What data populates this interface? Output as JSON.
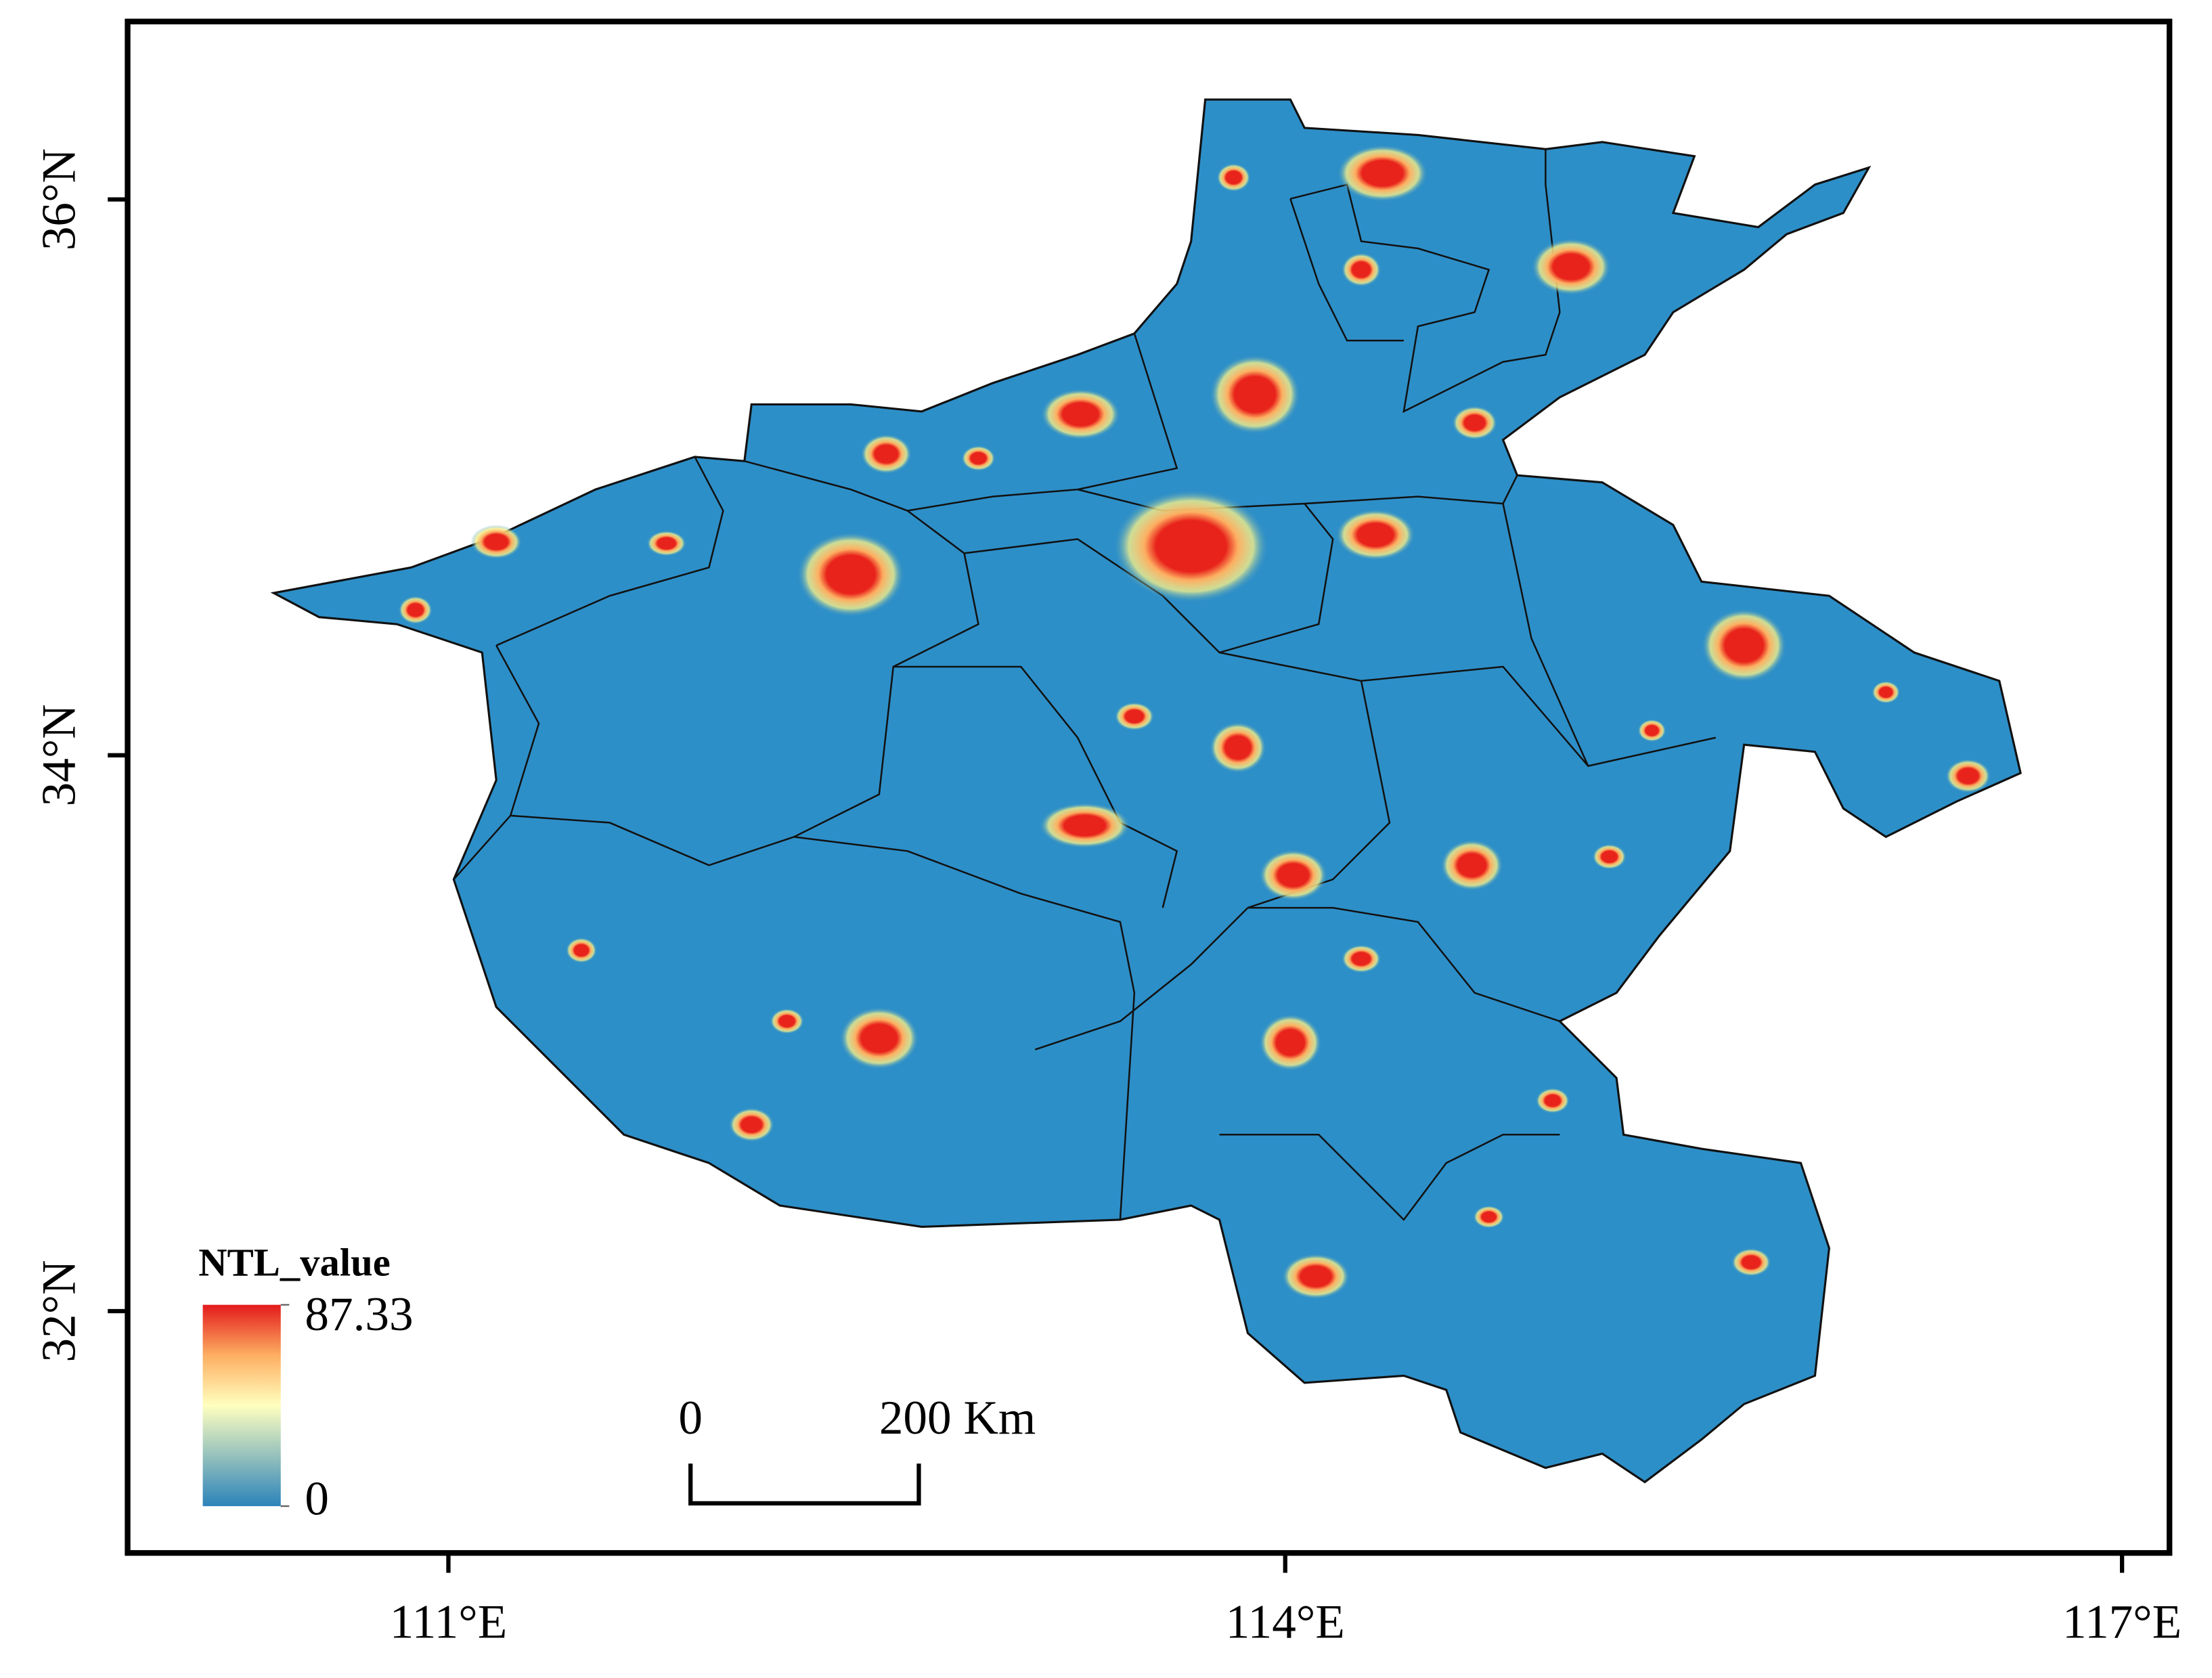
{
  "map": {
    "xlim": [
      109.85,
      117.17
    ],
    "ylim": [
      31.13,
      36.64
    ],
    "xticks": [
      {
        "value": 111,
        "label": "111°E"
      },
      {
        "value": 114,
        "label": "114°E"
      },
      {
        "value": 117,
        "label": "117°E"
      }
    ],
    "yticks": [
      {
        "value": 32,
        "label": "32°N"
      },
      {
        "value": 34,
        "label": "34°N"
      },
      {
        "value": 36,
        "label": "36°N"
      }
    ],
    "legend": {
      "title": "NTL_value",
      "max": 87.33,
      "min": 0
    },
    "scale_bar": {
      "start": 0,
      "end": {
        "value": 200,
        "label": "200 Km"
      }
    }
  }
}
